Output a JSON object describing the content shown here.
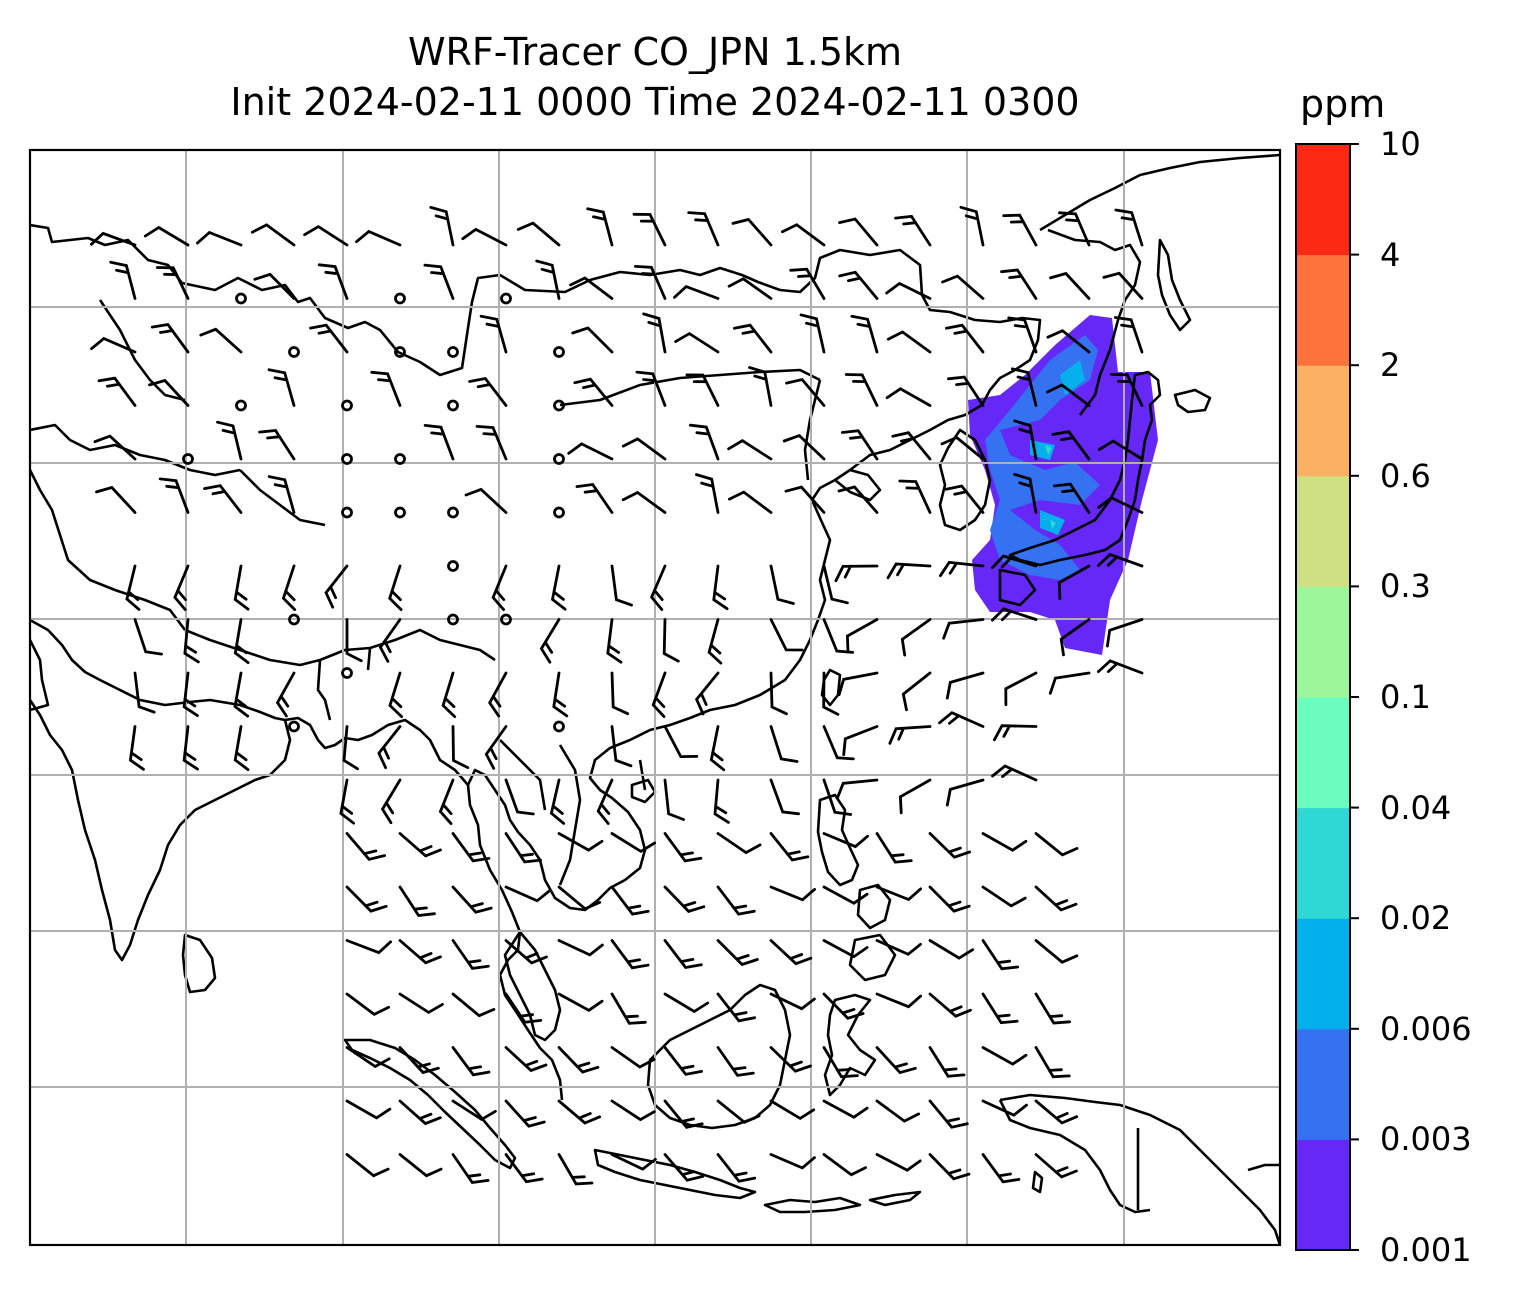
{
  "title_line1": "WRF-Tracer CO_JPN 1.5km",
  "title_line2": "Init 2024-02-11 0000 Time 2024-02-11 0300",
  "colorbar": {
    "unit": "ppm",
    "levels": [
      "0.001",
      "0.003",
      "0.006",
      "0.02",
      "0.04",
      "0.1",
      "0.3",
      "0.6",
      "2",
      "4",
      "10"
    ],
    "colors": [
      "#6528f7",
      "#3472f2",
      "#04b0ec",
      "#2fd8d4",
      "#6bfcbf",
      "#9bf79a",
      "#cfe084",
      "#fcb063",
      "#fe733c",
      "#fc2915"
    ]
  },
  "map": {
    "gridlines": true,
    "plume_colors": [
      "#6528f7",
      "#3472f2",
      "#04b0ec",
      "#2fd8d4"
    ]
  }
}
